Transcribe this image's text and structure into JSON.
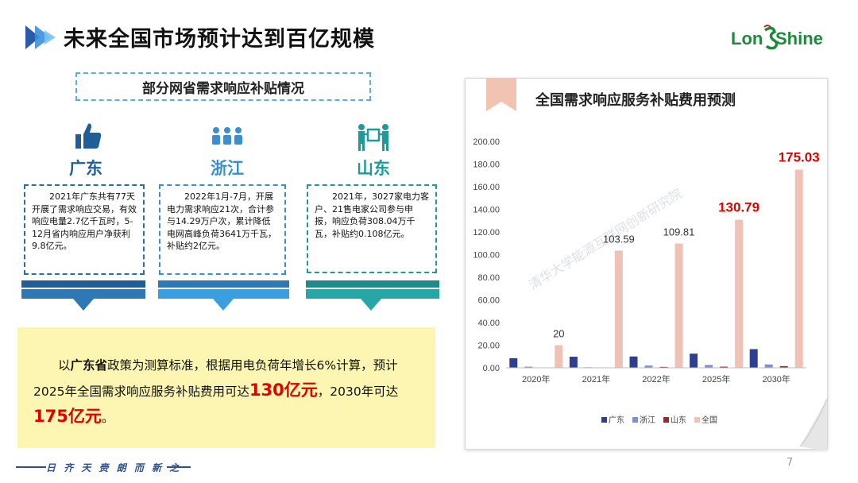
{
  "header": {
    "title": "未来全国市场预计达到百亿规模",
    "logo_text": "LongShine"
  },
  "left": {
    "subtitle": "部分网省需求响应补贴情况",
    "provinces": [
      {
        "name": "广东",
        "icon": "thumbs-up-icon",
        "color": "#1f5e96",
        "desc": "2021年广东共有77天开展了需求响应交易，有效响应电量2.7亿千瓦时，5-12月省内响应用户净获利9.8亿元。"
      },
      {
        "name": "浙江",
        "icon": "people-group-icon",
        "color": "#3a8fd0",
        "desc": "2022年1月-7月，开展电力需求响应21次，合计参与14.29万户次，累计降低电网高峰负荷3641万千瓦，补贴约2亿元。"
      },
      {
        "name": "山东",
        "icon": "handshake-box-icon",
        "color": "#1f9a9a",
        "desc": "2021年，3027家电力客户、21售电家公司参与申报，响应负荷308.04万千瓦，补贴约0.108亿元。"
      }
    ],
    "note": {
      "p1": "以",
      "bold1": "广东省",
      "p2": "政策为测算标准，根据用电负荷年增长6%计算，预计2025年全国需求响应服务补贴费用可达",
      "big1": "130亿元",
      "p3": "，2030年可达",
      "big2": "175亿元",
      "p4": "。"
    }
  },
  "chart_panel": {
    "title": "全国需求响应服务补贴费用预测",
    "watermark": "清华大学能源互联网创新研究院"
  },
  "chart_data": {
    "type": "bar",
    "title": "全国需求响应服务补贴费用预测",
    "categories": [
      "2020年",
      "2021年",
      "2022年",
      "2025年",
      "2030年"
    ],
    "series": [
      {
        "name": "广东",
        "color": "#2e3f8f",
        "values": [
          8.5,
          9.8,
          10,
          12.5,
          16.5
        ]
      },
      {
        "name": "浙江",
        "color": "#7f8fd6",
        "values": [
          1,
          0.5,
          2,
          2.5,
          3
        ]
      },
      {
        "name": "山东",
        "color": "#b01e28",
        "values": [
          0.3,
          0.108,
          0.8,
          1,
          1.5
        ]
      },
      {
        "name": "全国",
        "color": "#efc2b5",
        "values": [
          20,
          103.59,
          109.81,
          130.79,
          175.03
        ]
      }
    ],
    "data_labels": [
      "20",
      "103.59",
      "109.81",
      "130.79",
      "175.03"
    ],
    "y_ticks": [
      "0.00",
      "20.00",
      "40.00",
      "60.00",
      "80.00",
      "100.00",
      "120.00",
      "140.00",
      "160.00",
      "180.00",
      "200.00"
    ],
    "ylim": [
      0,
      200
    ],
    "grid": false,
    "legend": "bottom"
  },
  "footer": {
    "slogan": "日 齐 天 赍   朗 而 新 之",
    "page_number": "7"
  }
}
